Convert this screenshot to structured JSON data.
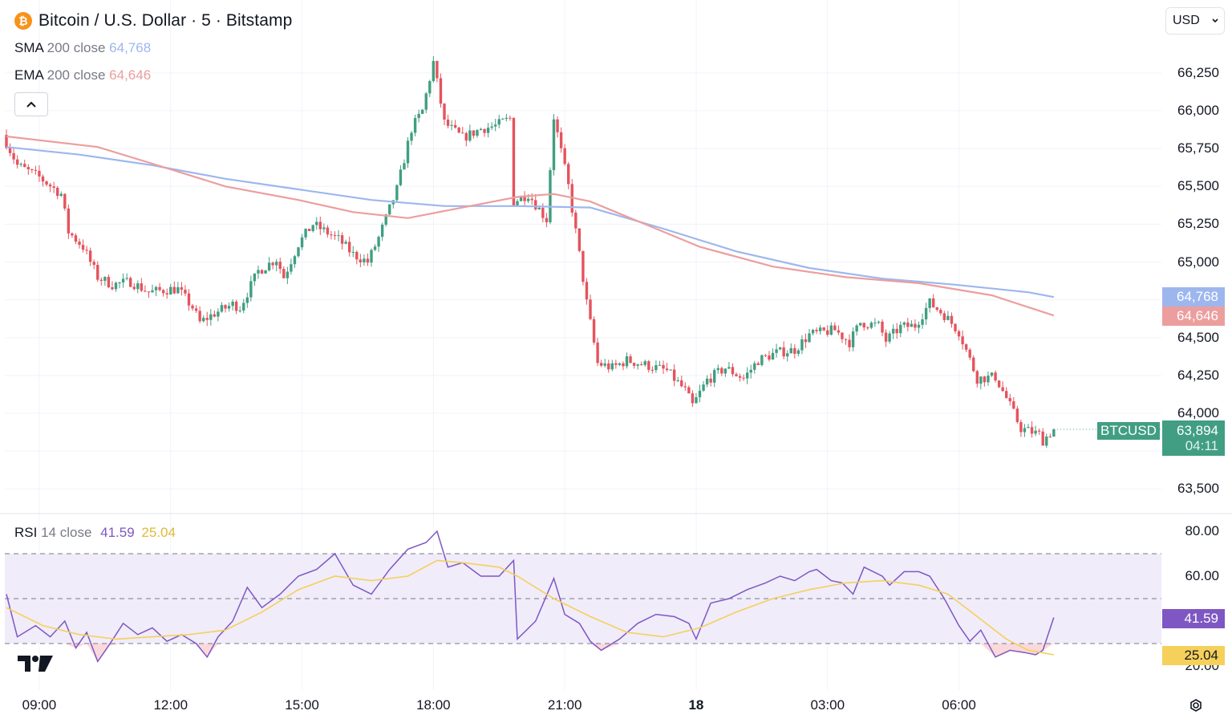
{
  "header": {
    "coin_symbol": "₿",
    "title": "Bitcoin / U.S. Dollar · 5 · Bitstamp",
    "currency": "USD",
    "currency_icon": "chevron-down-icon"
  },
  "indicators": {
    "sma": {
      "name": "SMA",
      "params": "200 close",
      "value": "64,768",
      "color": "#9db7ee"
    },
    "ema": {
      "name": "EMA",
      "params": "200 close",
      "value": "64,646",
      "color": "#ec9e9e"
    },
    "rsi": {
      "name": "RSI",
      "params": "14 close",
      "value": "41.59",
      "ma_value": "25.04",
      "color": "#7e57c2",
      "ma_color": "#f5d05a"
    }
  },
  "price_tags": {
    "sma": "64,768",
    "ema": "64,646",
    "last_price": "63,894",
    "countdown": "04:11",
    "symbol": "BTCUSD",
    "rsi": "41.59",
    "rsi_ma": "25.04"
  },
  "colors": {
    "up": "#419e82",
    "down": "#e5535d",
    "sma": "#9db7ee",
    "ema": "#ec9e9e",
    "rsi": "#7e57c2",
    "rsi_ma": "#f5d05a",
    "rsi_band": "#f0ecfa"
  },
  "chart_data": [
    {
      "type": "candlestick",
      "title": "Bitcoin / U.S. Dollar · 5 · Bitstamp",
      "y_ticks": [
        "66,250",
        "66,000",
        "65,750",
        "65,500",
        "65,250",
        "65,000",
        "64,500",
        "64,250",
        "64,000",
        "63,500"
      ],
      "x_ticks": [
        "09:00",
        "12:00",
        "15:00",
        "18:00",
        "21:00",
        "18",
        "03:00",
        "06:00"
      ],
      "ylim": [
        63450,
        66400
      ],
      "interval_minutes": 5,
      "anchors": [
        [
          0,
          65840
        ],
        [
          4,
          65640
        ],
        [
          10,
          65560
        ],
        [
          16,
          65450
        ],
        [
          18,
          65200
        ],
        [
          22,
          65100
        ],
        [
          26,
          64900
        ],
        [
          30,
          64850
        ],
        [
          35,
          64870
        ],
        [
          40,
          64800
        ],
        [
          46,
          64820
        ],
        [
          48,
          64820
        ],
        [
          52,
          64700
        ],
        [
          54,
          64600
        ],
        [
          58,
          64660
        ],
        [
          63,
          64720
        ],
        [
          65,
          64700
        ],
        [
          70,
          64940
        ],
        [
          75,
          65020
        ],
        [
          77,
          64900
        ],
        [
          81,
          65120
        ],
        [
          85,
          65250
        ],
        [
          92,
          65150
        ],
        [
          96,
          65050
        ],
        [
          100,
          65000
        ],
        [
          103,
          65160
        ],
        [
          108,
          65480
        ],
        [
          112,
          65880
        ],
        [
          115,
          66000
        ],
        [
          118,
          66320
        ],
        [
          121,
          65920
        ],
        [
          126,
          65820
        ],
        [
          131,
          65880
        ],
        [
          135,
          65900
        ],
        [
          139,
          65950
        ],
        [
          140,
          65400
        ],
        [
          144,
          65450
        ],
        [
          149,
          65280
        ],
        [
          151,
          65960
        ],
        [
          155,
          65500
        ],
        [
          158,
          65050
        ],
        [
          160,
          64730
        ],
        [
          163,
          64330
        ],
        [
          167,
          64300
        ],
        [
          171,
          64350
        ],
        [
          176,
          64320
        ],
        [
          182,
          64280
        ],
        [
          187,
          64150
        ],
        [
          189,
          64050
        ],
        [
          193,
          64220
        ],
        [
          198,
          64300
        ],
        [
          203,
          64230
        ],
        [
          207,
          64350
        ],
        [
          212,
          64400
        ],
        [
          217,
          64420
        ],
        [
          221,
          64520
        ],
        [
          228,
          64550
        ],
        [
          232,
          64470
        ],
        [
          235,
          64600
        ],
        [
          240,
          64580
        ],
        [
          242,
          64480
        ],
        [
          246,
          64570
        ],
        [
          250,
          64580
        ],
        [
          254,
          64730
        ],
        [
          258,
          64650
        ],
        [
          262,
          64540
        ],
        [
          267,
          64230
        ],
        [
          272,
          64240
        ],
        [
          275,
          64100
        ],
        [
          279,
          63900
        ],
        [
          284,
          63860
        ],
        [
          285,
          63820
        ],
        [
          287,
          63870
        ]
      ],
      "series": [
        {
          "name": "SMA",
          "params": "200 close",
          "last_value": 64768,
          "points": [
            [
              0,
              65760
            ],
            [
              20,
              65710
            ],
            [
              40,
              65640
            ],
            [
              60,
              65550
            ],
            [
              80,
              65480
            ],
            [
              100,
              65410
            ],
            [
              120,
              65370
            ],
            [
              140,
              65370
            ],
            [
              160,
              65360
            ],
            [
              180,
              65220
            ],
            [
              200,
              65070
            ],
            [
              220,
              64960
            ],
            [
              240,
              64890
            ],
            [
              260,
              64850
            ],
            [
              280,
              64800
            ],
            [
              287,
              64768
            ]
          ]
        },
        {
          "name": "EMA",
          "params": "200 close",
          "last_value": 64646,
          "points": [
            [
              0,
              65830
            ],
            [
              25,
              65760
            ],
            [
              40,
              65650
            ],
            [
              60,
              65500
            ],
            [
              80,
              65410
            ],
            [
              95,
              65330
            ],
            [
              110,
              65290
            ],
            [
              125,
              65360
            ],
            [
              140,
              65430
            ],
            [
              150,
              65450
            ],
            [
              160,
              65400
            ],
            [
              175,
              65250
            ],
            [
              190,
              65100
            ],
            [
              210,
              64970
            ],
            [
              230,
              64900
            ],
            [
              250,
              64860
            ],
            [
              270,
              64780
            ],
            [
              287,
              64646
            ]
          ]
        }
      ]
    },
    {
      "type": "line",
      "title": "RSI 14 close",
      "ylim": [
        15,
        85
      ],
      "y_ticks": [
        "80.00",
        "60.00",
        "20.00"
      ],
      "bands": {
        "upper": 70,
        "middle": 50,
        "lower": 30
      },
      "series": [
        {
          "name": "RSI",
          "last_value": 41.59,
          "points": [
            [
              0,
              52
            ],
            [
              3,
              33
            ],
            [
              8,
              38
            ],
            [
              12,
              33
            ],
            [
              16,
              40
            ],
            [
              19,
              28
            ],
            [
              22,
              35
            ],
            [
              25,
              22
            ],
            [
              28,
              29
            ],
            [
              32,
              39
            ],
            [
              36,
              34
            ],
            [
              40,
              37
            ],
            [
              44,
              31
            ],
            [
              48,
              34
            ],
            [
              52,
              30
            ],
            [
              55,
              24
            ],
            [
              58,
              33
            ],
            [
              62,
              40
            ],
            [
              66,
              55
            ],
            [
              70,
              46
            ],
            [
              75,
              52
            ],
            [
              80,
              60
            ],
            [
              85,
              63
            ],
            [
              90,
              70
            ],
            [
              95,
              56
            ],
            [
              100,
              52
            ],
            [
              105,
              63
            ],
            [
              110,
              72
            ],
            [
              115,
              75
            ],
            [
              118,
              80
            ],
            [
              121,
              64
            ],
            [
              125,
              66
            ],
            [
              130,
              60
            ],
            [
              135,
              60
            ],
            [
              139,
              67
            ],
            [
              140,
              32
            ],
            [
              145,
              40
            ],
            [
              150,
              59
            ],
            [
              153,
              43
            ],
            [
              157,
              39
            ],
            [
              160,
              31
            ],
            [
              163,
              27
            ],
            [
              168,
              32
            ],
            [
              173,
              39
            ],
            [
              178,
              43
            ],
            [
              183,
              42
            ],
            [
              187,
              39
            ],
            [
              189,
              32
            ],
            [
              193,
              48
            ],
            [
              198,
              50
            ],
            [
              203,
              54
            ],
            [
              208,
              57
            ],
            [
              212,
              60
            ],
            [
              216,
              58
            ],
            [
              220,
              62
            ],
            [
              222,
              63
            ],
            [
              226,
              58
            ],
            [
              229,
              57
            ],
            [
              232,
              52
            ],
            [
              235,
              64
            ],
            [
              240,
              60
            ],
            [
              242,
              56
            ],
            [
              246,
              62
            ],
            [
              250,
              62
            ],
            [
              253,
              60
            ],
            [
              257,
              50
            ],
            [
              261,
              38
            ],
            [
              264,
              31
            ],
            [
              267,
              36
            ],
            [
              271,
              24
            ],
            [
              275,
              27
            ],
            [
              279,
              26
            ],
            [
              282,
              25
            ],
            [
              284,
              27
            ],
            [
              287,
              41.59
            ]
          ]
        },
        {
          "name": "RSI MA",
          "last_value": 25.04,
          "points": [
            [
              0,
              46
            ],
            [
              10,
              38
            ],
            [
              20,
              34
            ],
            [
              30,
              32
            ],
            [
              40,
              33
            ],
            [
              50,
              34
            ],
            [
              60,
              36
            ],
            [
              70,
              44
            ],
            [
              80,
              54
            ],
            [
              90,
              60
            ],
            [
              100,
              58
            ],
            [
              110,
              60
            ],
            [
              118,
              67
            ],
            [
              125,
              66
            ],
            [
              135,
              64
            ],
            [
              140,
              60
            ],
            [
              150,
              50
            ],
            [
              160,
              42
            ],
            [
              170,
              35
            ],
            [
              180,
              33
            ],
            [
              190,
              37
            ],
            [
              200,
              44
            ],
            [
              210,
              50
            ],
            [
              220,
              54
            ],
            [
              230,
              57
            ],
            [
              240,
              58
            ],
            [
              250,
              56
            ],
            [
              258,
              52
            ],
            [
              266,
              42
            ],
            [
              274,
              32
            ],
            [
              280,
              27
            ],
            [
              287,
              25.04
            ]
          ]
        }
      ]
    }
  ]
}
